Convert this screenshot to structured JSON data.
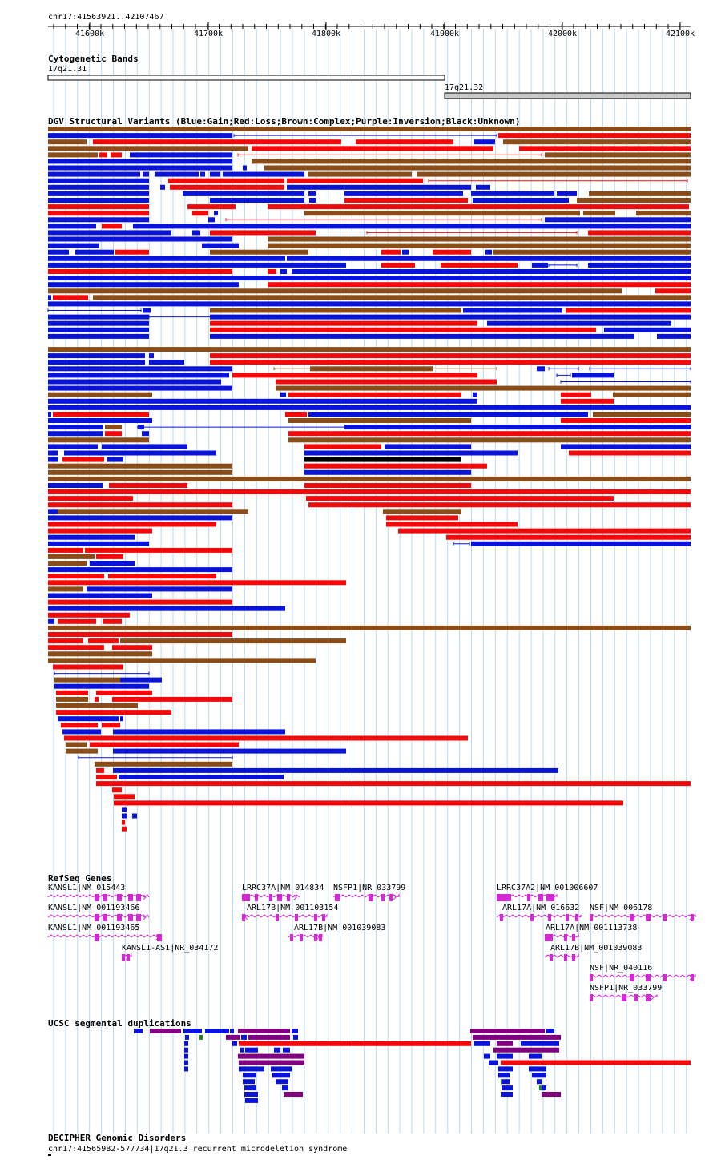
{
  "header": {
    "coordinates": "chr17:41563921..42107467",
    "ticks": [
      "41600k",
      "41700k",
      "41800k",
      "41900k",
      "42000k",
      "42100k"
    ]
  },
  "tracks": {
    "cytoband": {
      "title": "Cytogenetic Bands",
      "bands": [
        {
          "label": "17q21.31",
          "start": 41563921,
          "end": 41900000,
          "color": "#ffffff"
        },
        {
          "label": "17q21.32",
          "start": 41900000,
          "end": 42107467,
          "color": "#c8c8c8"
        }
      ]
    },
    "dgv": {
      "title": "DGV Structural Variants (Blue:Gain;Red:Loss;Brown:Complex;Purple:Inversion;Black:Unknown)",
      "colors": {
        "gain": "#0a14d8",
        "loss": "#f20a0a",
        "complex": "#8a4c18",
        "inversion": "#800080",
        "unknown": "#000000"
      }
    },
    "refseq": {
      "title": "RefSeq Genes",
      "color": "#d42ad4",
      "genes": [
        {
          "label": "KANSL1|NM_015443"
        },
        {
          "label": "KANSL1|NM_001193466"
        },
        {
          "label": "KANSL1|NM_001193465"
        },
        {
          "label": "KANSL1-AS1|NR_034172"
        },
        {
          "label": "LRRC37A|NM_014834"
        },
        {
          "label": "NSFP1|NR_033799"
        },
        {
          "label": "ARL17B|NM_001103154"
        },
        {
          "label": "ARL17B|NM_001039083"
        },
        {
          "label": "LRRC37A2|NM_001006607"
        },
        {
          "label": "ARL17A|NM_016632"
        },
        {
          "label": "NSF|NM_006178"
        },
        {
          "label": "ARL17A|NM_001113738"
        },
        {
          "label": "ARL17B|NM_001039083"
        },
        {
          "label": "NSF|NR_040116"
        },
        {
          "label": "NSFP1|NR_033799"
        }
      ]
    },
    "segdups": {
      "title": "UCSC segmental duplications",
      "colors": {
        "blue": "#0a14d8",
        "purple": "#800080",
        "red": "#f20a0a",
        "green": "#1a8a1a"
      }
    },
    "decipher": {
      "title": "DECIPHER Genomic Disorders",
      "feature": "chr17:41565982-577734|17q21.3 recurrent microdeletion syndrome"
    }
  }
}
